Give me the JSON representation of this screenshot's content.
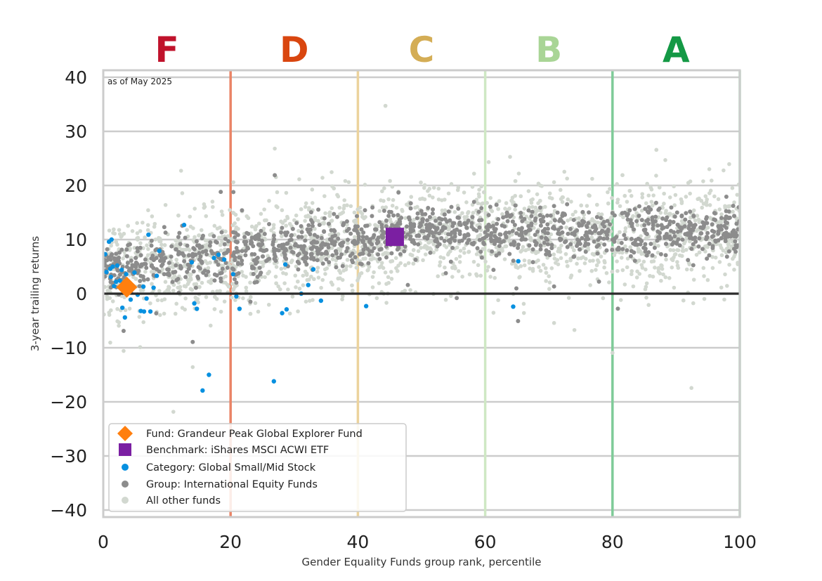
{
  "chart_data": {
    "type": "scatter",
    "note": "as of May 2025",
    "xlabel": "Gender Equality Funds group rank, percentile",
    "ylabel": "3-year trailing returns",
    "xlim": [
      0,
      100
    ],
    "ylim": [
      -41,
      41
    ],
    "xticks": [
      {
        "value": 0,
        "label": "0"
      },
      {
        "value": 20,
        "label": "20"
      },
      {
        "value": 40,
        "label": "40"
      },
      {
        "value": 60,
        "label": "60"
      },
      {
        "value": 80,
        "label": "80"
      },
      {
        "value": 100,
        "label": "100"
      }
    ],
    "yticks": [
      {
        "value": 40,
        "label": "40"
      },
      {
        "value": 30,
        "label": "30"
      },
      {
        "value": 20,
        "label": "20"
      },
      {
        "value": 10,
        "label": "10"
      },
      {
        "value": 0,
        "label": "0"
      },
      {
        "value": -10,
        "label": "−10"
      },
      {
        "value": -20,
        "label": "−20"
      },
      {
        "value": -30,
        "label": "−30"
      },
      {
        "value": -40,
        "label": "−40"
      }
    ],
    "grid": "horizontal",
    "grades": [
      {
        "letter": "F",
        "x": 10,
        "color": "#c0122b"
      },
      {
        "letter": "D",
        "x": 30,
        "color": "#d9460f"
      },
      {
        "letter": "C",
        "x": 50,
        "color": "#d4ad55"
      },
      {
        "letter": "B",
        "x": 70,
        "color": "#a9d596"
      },
      {
        "letter": "A",
        "x": 90,
        "color": "#149945"
      }
    ],
    "grade_boundaries": [
      {
        "x": 20,
        "color": "#ea8466"
      },
      {
        "x": 40,
        "color": "#ecd39d"
      },
      {
        "x": 60,
        "color": "#cfe8c4"
      },
      {
        "x": 80,
        "color": "#7fcb98"
      },
      {
        "x": 100,
        "color": "#a8d8b6"
      }
    ],
    "legend_position": "lower-left",
    "series": [
      {
        "name": "Fund: Grandeur Peak Global Explorer Fund",
        "marker": "diamond",
        "color": "#ff7f0e",
        "points": [
          [
            3.7,
            1.2
          ]
        ]
      },
      {
        "name": "Benchmark: iShares MSCI ACWI ETF",
        "marker": "square",
        "color": "#7b1fa2",
        "points": [
          [
            45.8,
            10.5
          ]
        ]
      },
      {
        "name": "Category: Global Small/Mid Stock",
        "marker": "circle",
        "color": "#0690e0",
        "points": [
          [
            0.5,
            4
          ],
          [
            0.9,
            9.6
          ],
          [
            1.1,
            4.6
          ],
          [
            1.2,
            3.1
          ],
          [
            1.3,
            10
          ],
          [
            1.5,
            5
          ],
          [
            2,
            2.2
          ],
          [
            2.2,
            5.2
          ],
          [
            2.6,
            2.4
          ],
          [
            2.9,
            4.4
          ],
          [
            3,
            -2.6
          ],
          [
            3.4,
            -4.4
          ],
          [
            3.6,
            3.6
          ],
          [
            3.9,
            1.8
          ],
          [
            4.3,
            -1.1
          ],
          [
            4.9,
            3.9
          ],
          [
            5.4,
            -0.2
          ],
          [
            5.9,
            -3.2
          ],
          [
            6.3,
            1.3
          ],
          [
            6.8,
            -0.9
          ],
          [
            6.4,
            -3.3
          ],
          [
            7.4,
            -3.3
          ],
          [
            7.9,
            1.1
          ],
          [
            8.4,
            3.3
          ],
          [
            8.8,
            7.9
          ],
          [
            7.1,
            10.9
          ],
          [
            12.7,
            12.7
          ],
          [
            13.9,
            5.8
          ],
          [
            14.3,
            -1.8
          ],
          [
            14.7,
            -2.8
          ],
          [
            15.6,
            -17.9
          ],
          [
            16.6,
            -15
          ],
          [
            17.4,
            6.6
          ],
          [
            18.1,
            7.2
          ],
          [
            19,
            6.3
          ],
          [
            20.4,
            3.6
          ],
          [
            20.9,
            -0.5
          ],
          [
            21.4,
            -2.8
          ],
          [
            26.8,
            -16.2
          ],
          [
            28.1,
            -3.6
          ],
          [
            28.8,
            -2.9
          ],
          [
            28.6,
            5.4
          ],
          [
            31.1,
            0
          ],
          [
            32.2,
            1.6
          ],
          [
            33,
            4.5
          ],
          [
            34.2,
            -1.3
          ],
          [
            41.3,
            -2.3
          ],
          [
            64.4,
            -2.4
          ],
          [
            65.2,
            6
          ],
          [
            0.3,
            7.3
          ],
          [
            1.7,
            1.4
          ]
        ]
      },
      {
        "name": "Group: International Equity Funds",
        "marker": "circle",
        "color": "#8c8c8c",
        "points": []
      },
      {
        "name": "All other funds",
        "marker": "circle",
        "color": "#d2d8d0",
        "points": []
      }
    ]
  }
}
